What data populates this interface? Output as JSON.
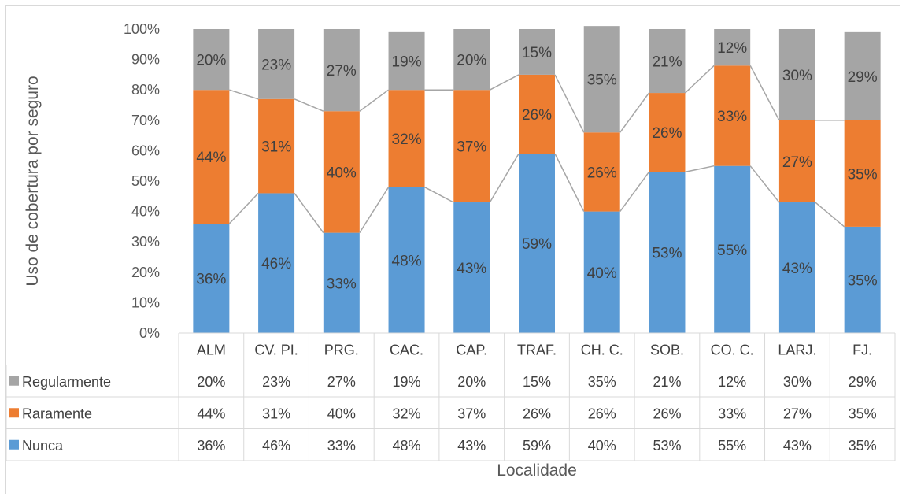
{
  "chart_data": {
    "type": "bar",
    "stacked": true,
    "percent_stacked": true,
    "categories": [
      "ALM",
      "CV. PI.",
      "PRG.",
      "CAC.",
      "CAP.",
      "TRAF.",
      "CH. C.",
      "SOB.",
      "CO. C.",
      "LARJ.",
      "FJ."
    ],
    "series": [
      {
        "name": "Nunca",
        "color": "#5b9bd5",
        "values": [
          36,
          46,
          33,
          48,
          43,
          59,
          40,
          53,
          55,
          43,
          35
        ]
      },
      {
        "name": "Raramente",
        "color": "#ed7d31",
        "values": [
          44,
          31,
          40,
          32,
          37,
          26,
          26,
          26,
          33,
          27,
          35
        ]
      },
      {
        "name": "Regularmente",
        "color": "#a5a5a5",
        "values": [
          20,
          23,
          27,
          19,
          20,
          15,
          35,
          21,
          12,
          30,
          29
        ]
      }
    ],
    "table_rows": [
      {
        "name": "Regularmente",
        "values": [
          "20%",
          "23%",
          "27%",
          "19%",
          "20%",
          "15%",
          "35%",
          "21%",
          "12%",
          "30%",
          "29%"
        ]
      },
      {
        "name": "Raramente",
        "values": [
          "44%",
          "31%",
          "40%",
          "32%",
          "37%",
          "26%",
          "26%",
          "26%",
          "33%",
          "27%",
          "35%"
        ]
      },
      {
        "name": "Nunca",
        "values": [
          "36%",
          "46%",
          "33%",
          "48%",
          "43%",
          "59%",
          "40%",
          "53%",
          "55%",
          "43%",
          "35%"
        ]
      }
    ],
    "data_labels": [
      [
        "36%",
        "46%",
        "33%",
        "48%",
        "43%",
        "59%",
        "40%",
        "53%",
        "55%",
        "43%",
        "35%"
      ],
      [
        "44%",
        "31%",
        "40%",
        "32%",
        "37%",
        "26%",
        "26%",
        "26%",
        "33%",
        "27%",
        "35%"
      ],
      [
        "20%",
        "23%",
        "27%",
        "19%",
        "20%",
        "15%",
        "35%",
        "21%",
        "12%",
        "30%",
        "29%"
      ]
    ],
    "yticks": [
      "0%",
      "10%",
      "20%",
      "30%",
      "40%",
      "50%",
      "60%",
      "70%",
      "80%",
      "90%",
      "100%"
    ],
    "ylim": [
      0,
      100
    ],
    "ylabel": "Uso de cobertura por seguro",
    "xlabel": "Localidade",
    "series_lines": true,
    "data_table": true
  }
}
